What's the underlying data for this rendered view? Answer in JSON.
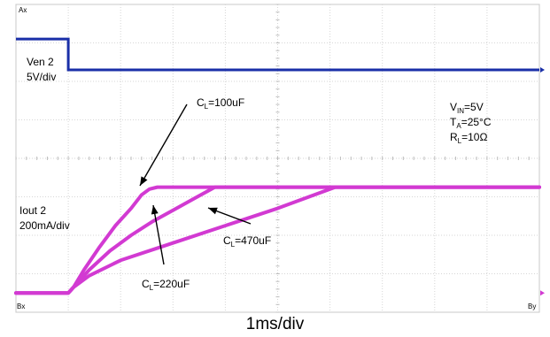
{
  "chart_data": {
    "type": "line",
    "title": "",
    "x_unit_label": "1ms/div",
    "x_divisions": 10,
    "y_divisions": 8,
    "grid": true,
    "corner_marks": {
      "top_left": "Ax",
      "bottom_left": "Bx",
      "bottom_right": "By"
    },
    "channels": [
      {
        "name": "Ven 2",
        "scale": "5V/div",
        "color": "#1a2fa8"
      },
      {
        "name": "Iout 2",
        "scale": "200mA/div",
        "color": "#d23ad2"
      }
    ],
    "conditions": [
      "V_IN=5V",
      "T_A=25°C",
      "R_L=10Ω"
    ],
    "conditions_display": [
      {
        "main": "V",
        "sub": "IN",
        "rest": "=5V"
      },
      {
        "main": "T",
        "sub": "A",
        "rest": "=25°C"
      },
      {
        "main": "R",
        "sub": "L",
        "rest": "=10Ω"
      }
    ],
    "ven_trace": {
      "x_ms": [
        0,
        1.0,
        1.0,
        10.0
      ],
      "level_div": [
        6.6,
        6.6,
        5.8,
        5.8
      ]
    },
    "iout_series": [
      {
        "name": "CL=100uF",
        "label": {
          "main": "C",
          "sub": "L",
          "rest": "=100uF"
        },
        "x_ms": [
          0,
          1.0,
          1.1,
          1.3,
          1.6,
          1.9,
          2.2,
          2.4,
          2.55,
          2.7,
          10.0
        ],
        "level_div": [
          0.0,
          0.0,
          0.15,
          0.6,
          1.2,
          1.75,
          2.2,
          2.55,
          2.7,
          2.75,
          2.75
        ]
      },
      {
        "name": "CL=220uF",
        "label": {
          "main": "C",
          "sub": "L",
          "rest": "=220uF"
        },
        "x_ms": [
          0,
          1.0,
          1.1,
          1.4,
          1.8,
          2.2,
          2.6,
          3.0,
          3.4,
          3.8,
          10.0
        ],
        "level_div": [
          0.0,
          0.0,
          0.15,
          0.6,
          1.1,
          1.5,
          1.85,
          2.15,
          2.45,
          2.75,
          2.75
        ]
      },
      {
        "name": "CL=470uF",
        "label": {
          "main": "C",
          "sub": "L",
          "rest": "=470uF"
        },
        "x_ms": [
          0,
          1.0,
          1.1,
          1.4,
          2.0,
          3.0,
          4.0,
          5.0,
          5.8,
          6.1,
          10.0
        ],
        "level_div": [
          0.0,
          0.0,
          0.15,
          0.45,
          0.85,
          1.3,
          1.75,
          2.2,
          2.6,
          2.75,
          2.75
        ]
      }
    ]
  }
}
